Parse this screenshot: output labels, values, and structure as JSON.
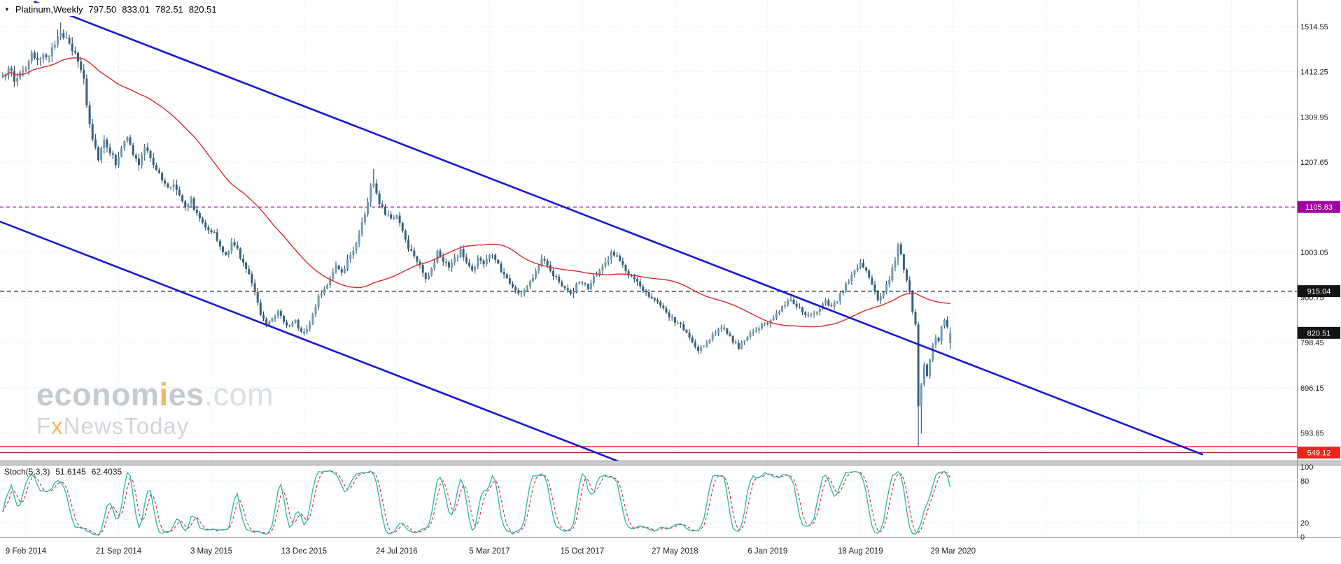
{
  "header": {
    "dropdown_icon": "▼",
    "symbol": "Platinum,Weekly",
    "open": "797.50",
    "high": "833.01",
    "low": "782.51",
    "close": "820.51"
  },
  "watermark": {
    "brand_a": "econom",
    "brand_b": "i",
    "brand_c": "es",
    "brand_domain": ".com",
    "tagline_a": "F",
    "tagline_b": "x",
    "tagline_c": "NewsToday"
  },
  "colors": {
    "background": "#ffffff",
    "grid": "#d6e9f4",
    "candle_up": "#6f9cb5",
    "candle_down": "#35617d",
    "candle_wick": "#1d4257",
    "sma": "#d62a2a",
    "trendline": "#1616d6",
    "stoch_k": "#2ab3a6",
    "stoch_d": "#cc2b2b",
    "axis_text": "#1b1b1b",
    "badge_text": "#ffffff",
    "divider_fill": "#cccccc",
    "divider_edge": "#8c8c8c"
  },
  "chart_data": {
    "type": "candlestick",
    "title": "Platinum,Weekly",
    "timeframe": "Weekly",
    "y_domain": [
      531,
      1575
    ],
    "weeks_total": 328,
    "x_labels": [
      {
        "text": "9 Feb 2014",
        "week": 8
      },
      {
        "text": "21 Sep 2014",
        "week": 40
      },
      {
        "text": "3 May 2015",
        "week": 72
      },
      {
        "text": "13 Dec 2015",
        "week": 104
      },
      {
        "text": "24 Jul 2016",
        "week": 136
      },
      {
        "text": "5 Mar 2017",
        "week": 168
      },
      {
        "text": "15 Oct 2017",
        "week": 200
      },
      {
        "text": "27 May 2018",
        "week": 232
      },
      {
        "text": "6 Jan 2019",
        "week": 264
      },
      {
        "text": "18 Aug 2019",
        "week": 296
      },
      {
        "text": "29 Mar 2020",
        "week": 328
      }
    ],
    "y_ticks": [
      {
        "value": 1514.55,
        "label": "1514.55"
      },
      {
        "value": 1412.25,
        "label": "1412.25"
      },
      {
        "value": 1309.95,
        "label": "1309.95"
      },
      {
        "value": 1207.65,
        "label": "1207.65"
      },
      {
        "value": 1105.35,
        "label": ""
      },
      {
        "value": 1003.05,
        "label": "1003.05"
      },
      {
        "value": 900.75,
        "label": "900.75"
      },
      {
        "value": 798.45,
        "label": "798.45"
      },
      {
        "value": 696.15,
        "label": "696.15"
      },
      {
        "value": 593.85,
        "label": "593.85"
      }
    ],
    "price_path_anchors": [
      [
        0,
        1395
      ],
      [
        2,
        1428
      ],
      [
        4,
        1388
      ],
      [
        6,
        1412
      ],
      [
        8,
        1422
      ],
      [
        10,
        1448
      ],
      [
        12,
        1432
      ],
      [
        14,
        1458
      ],
      [
        16,
        1442
      ],
      [
        18,
        1478
      ],
      [
        20,
        1508
      ],
      [
        22,
        1482
      ],
      [
        24,
        1462
      ],
      [
        26,
        1438
      ],
      [
        28,
        1398
      ],
      [
        29,
        1338
      ],
      [
        31,
        1262
      ],
      [
        33,
        1218
      ],
      [
        35,
        1260
      ],
      [
        37,
        1232
      ],
      [
        39,
        1206
      ],
      [
        41,
        1243
      ],
      [
        43,
        1260
      ],
      [
        45,
        1226
      ],
      [
        47,
        1202
      ],
      [
        49,
        1238
      ],
      [
        51,
        1220
      ],
      [
        53,
        1192
      ],
      [
        55,
        1166
      ],
      [
        57,
        1148
      ],
      [
        59,
        1158
      ],
      [
        61,
        1136
      ],
      [
        63,
        1110
      ],
      [
        65,
        1122
      ],
      [
        67,
        1088
      ],
      [
        69,
        1072
      ],
      [
        71,
        1058
      ],
      [
        73,
        1046
      ],
      [
        75,
        1012
      ],
      [
        77,
        996
      ],
      [
        79,
        1022
      ],
      [
        81,
        1010
      ],
      [
        83,
        978
      ],
      [
        85,
        950
      ],
      [
        87,
        918
      ],
      [
        89,
        864
      ],
      [
        91,
        840
      ],
      [
        93,
        856
      ],
      [
        95,
        872
      ],
      [
        97,
        848
      ],
      [
        99,
        834
      ],
      [
        101,
        846
      ],
      [
        103,
        822
      ],
      [
        105,
        830
      ],
      [
        107,
        858
      ],
      [
        109,
        904
      ],
      [
        111,
        922
      ],
      [
        113,
        942
      ],
      [
        115,
        968
      ],
      [
        117,
        956
      ],
      [
        119,
        986
      ],
      [
        121,
        1008
      ],
      [
        123,
        1048
      ],
      [
        125,
        1090
      ],
      [
        127,
        1150
      ],
      [
        128,
        1162
      ],
      [
        130,
        1118
      ],
      [
        132,
        1094
      ],
      [
        134,
        1076
      ],
      [
        136,
        1088
      ],
      [
        138,
        1052
      ],
      [
        140,
        1016
      ],
      [
        142,
        998
      ],
      [
        144,
        976
      ],
      [
        146,
        944
      ],
      [
        148,
        962
      ],
      [
        150,
        1002
      ],
      [
        152,
        986
      ],
      [
        154,
        968
      ],
      [
        156,
        988
      ],
      [
        158,
        1006
      ],
      [
        160,
        980
      ],
      [
        162,
        962
      ],
      [
        164,
        988
      ],
      [
        166,
        976
      ],
      [
        168,
        998
      ],
      [
        170,
        988
      ],
      [
        172,
        962
      ],
      [
        174,
        944
      ],
      [
        176,
        926
      ],
      [
        178,
        908
      ],
      [
        180,
        918
      ],
      [
        182,
        934
      ],
      [
        184,
        962
      ],
      [
        186,
        992
      ],
      [
        188,
        978
      ],
      [
        190,
        952
      ],
      [
        192,
        938
      ],
      [
        194,
        922
      ],
      [
        196,
        908
      ],
      [
        198,
        928
      ],
      [
        200,
        938
      ],
      [
        202,
        918
      ],
      [
        204,
        946
      ],
      [
        206,
        958
      ],
      [
        208,
        980
      ],
      [
        210,
        1002
      ],
      [
        212,
        994
      ],
      [
        214,
        972
      ],
      [
        216,
        952
      ],
      [
        218,
        938
      ],
      [
        220,
        926
      ],
      [
        222,
        912
      ],
      [
        224,
        902
      ],
      [
        226,
        888
      ],
      [
        228,
        872
      ],
      [
        230,
        858
      ],
      [
        232,
        846
      ],
      [
        234,
        838
      ],
      [
        236,
        820
      ],
      [
        238,
        798
      ],
      [
        240,
        778
      ],
      [
        242,
        792
      ],
      [
        244,
        808
      ],
      [
        246,
        822
      ],
      [
        248,
        836
      ],
      [
        250,
        816
      ],
      [
        252,
        802
      ],
      [
        254,
        788
      ],
      [
        256,
        802
      ],
      [
        258,
        816
      ],
      [
        260,
        828
      ],
      [
        262,
        838
      ],
      [
        264,
        843
      ],
      [
        266,
        858
      ],
      [
        268,
        872
      ],
      [
        270,
        886
      ],
      [
        272,
        898
      ],
      [
        274,
        882
      ],
      [
        276,
        868
      ],
      [
        278,
        856
      ],
      [
        280,
        862
      ],
      [
        282,
        874
      ],
      [
        284,
        892
      ],
      [
        286,
        882
      ],
      [
        288,
        896
      ],
      [
        290,
        918
      ],
      [
        292,
        942
      ],
      [
        294,
        962
      ],
      [
        296,
        978
      ],
      [
        298,
        958
      ],
      [
        300,
        932
      ],
      [
        302,
        896
      ],
      [
        304,
        912
      ],
      [
        306,
        944
      ],
      [
        308,
        986
      ],
      [
        309,
        1018
      ],
      [
        310,
        1002
      ],
      [
        311,
        968
      ],
      [
        312,
        944
      ],
      [
        313,
        912
      ],
      [
        314,
        866
      ],
      [
        315,
        836
      ],
      [
        316,
        652
      ],
      [
        317,
        706
      ],
      [
        318,
        748
      ],
      [
        319,
        722
      ],
      [
        320,
        760
      ],
      [
        321,
        792
      ],
      [
        322,
        812
      ],
      [
        323,
        798
      ],
      [
        324,
        832
      ],
      [
        325,
        848
      ],
      [
        326,
        836
      ],
      [
        327,
        820.51
      ]
    ],
    "wick_overrides": {
      "20": {
        "high": 1524
      },
      "128": {
        "high": 1192
      },
      "316": {
        "low": 562
      },
      "317": {
        "low": 592
      }
    },
    "last_candle": {
      "open": 797.5,
      "high": 833.01,
      "low": 782.51,
      "close": 820.51
    },
    "sma_period": 50,
    "trend_channel": {
      "upper": {
        "w1": 11,
        "p1": 1571,
        "w2": 414,
        "p2": 545
      },
      "lower": {
        "w1": -1,
        "p1": 1073,
        "w2": 213,
        "p2": 528
      }
    },
    "horizontal_lines": [
      {
        "price": 1105.83,
        "color": "#a000a0",
        "dash": "5 4",
        "width": 1.2
      },
      {
        "price": 915.04,
        "color": "#141414",
        "dash": "6 4",
        "width": 1.2
      },
      {
        "price": 562.5,
        "color": "#f01818",
        "dash": "",
        "width": 1.5
      },
      {
        "price": 549.12,
        "color": "#96372f",
        "dash": "",
        "width": 1.2
      }
    ],
    "axis_badges": [
      {
        "label": "1105.83",
        "price": 1105.83,
        "bg": "#a000a0"
      },
      {
        "label": "915.04",
        "price": 915.04,
        "bg": "#141414"
      },
      {
        "label": "820.51",
        "price": 820.51,
        "bg": "#141414"
      },
      {
        "label": "549.12",
        "price": 549.12,
        "bg": "#e8281e"
      }
    ],
    "stochastic": {
      "label": "Stoch(5,3,3)",
      "k_value": "51.6145",
      "d_value": "62.4035",
      "period": 5,
      "k_smooth": 3,
      "d_smooth": 3,
      "levels": [
        20,
        80
      ],
      "axis_labels": [
        100,
        80,
        20,
        0
      ],
      "range": [
        0,
        100
      ]
    }
  }
}
